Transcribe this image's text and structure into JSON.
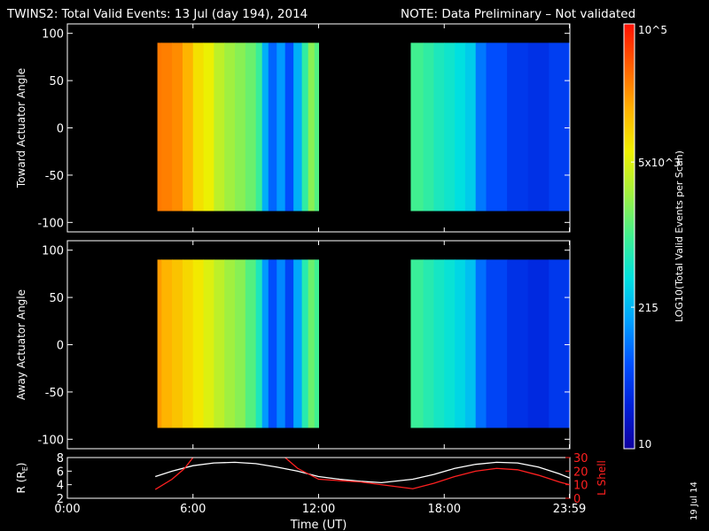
{
  "header": {
    "title": "TWINS2: Total Valid Events: 13 Jul (day 194), 2014",
    "note": "NOTE: Data Preliminary – Not validated",
    "note_color": "#ff2020"
  },
  "side_date": "19 Jul 14",
  "colorbar": {
    "label": "LOG10(Total Valid Events per Scan)",
    "scale": "log",
    "range": [
      10,
      100000
    ],
    "ticks": [
      {
        "value": 100000,
        "label": "10^5"
      },
      {
        "value": 5000,
        "label": "5x10^3"
      },
      {
        "value": 215,
        "label": "215"
      },
      {
        "value": 10,
        "label": "10"
      }
    ],
    "colormap": [
      "#1000a0",
      "#0020d8",
      "#0050ff",
      "#00a0ff",
      "#00e0e0",
      "#40f090",
      "#a0f040",
      "#f0f000",
      "#ffb000",
      "#ff6000",
      "#ff1000"
    ]
  },
  "chart_data": [
    {
      "type": "heatmap",
      "ylabel": "Toward Actuator Angle",
      "ylim": [
        -110,
        110
      ],
      "yticks": [
        100,
        50,
        0,
        -50,
        -100
      ],
      "xlim": [
        0,
        24
      ],
      "angle_range": [
        -88,
        90
      ],
      "data_intervals_hours": [
        [
          4.3,
          12.0
        ],
        [
          16.4,
          24.0
        ]
      ],
      "samples": [
        {
          "t": 4.3,
          "v": 30000
        },
        {
          "t": 4.5,
          "v": 28000
        },
        {
          "t": 5.0,
          "v": 24000
        },
        {
          "t": 5.5,
          "v": 15000
        },
        {
          "t": 6.0,
          "v": 8000
        },
        {
          "t": 6.5,
          "v": 6000
        },
        {
          "t": 7.0,
          "v": 3500
        },
        {
          "t": 7.5,
          "v": 2500
        },
        {
          "t": 8.0,
          "v": 2000
        },
        {
          "t": 8.5,
          "v": 1500
        },
        {
          "t": 9.0,
          "v": 900
        },
        {
          "t": 9.3,
          "v": 200
        },
        {
          "t": 9.6,
          "v": 80
        },
        {
          "t": 10.0,
          "v": 150
        },
        {
          "t": 10.4,
          "v": 60
        },
        {
          "t": 10.8,
          "v": 200
        },
        {
          "t": 11.2,
          "v": 800
        },
        {
          "t": 11.5,
          "v": 2000
        },
        {
          "t": 11.8,
          "v": 1200
        },
        {
          "t": 16.4,
          "v": 1000
        },
        {
          "t": 17.0,
          "v": 800
        },
        {
          "t": 17.5,
          "v": 600
        },
        {
          "t": 18.0,
          "v": 500
        },
        {
          "t": 18.5,
          "v": 400
        },
        {
          "t": 19.0,
          "v": 300
        },
        {
          "t": 19.5,
          "v": 100
        },
        {
          "t": 20.0,
          "v": 60
        },
        {
          "t": 21.0,
          "v": 40
        },
        {
          "t": 22.0,
          "v": 35
        },
        {
          "t": 23.0,
          "v": 45
        },
        {
          "t": 23.9,
          "v": 50
        }
      ]
    },
    {
      "type": "heatmap",
      "ylabel": "Away Actuator Angle",
      "ylim": [
        -110,
        110
      ],
      "yticks": [
        100,
        50,
        0,
        -50,
        -100
      ],
      "xlim": [
        0,
        24
      ],
      "angle_range": [
        -88,
        90
      ],
      "data_intervals_hours": [
        [
          4.3,
          12.0
        ],
        [
          16.4,
          24.0
        ]
      ],
      "samples": [
        {
          "t": 4.3,
          "v": 20000
        },
        {
          "t": 4.5,
          "v": 15000
        },
        {
          "t": 5.0,
          "v": 12000
        },
        {
          "t": 5.5,
          "v": 9000
        },
        {
          "t": 6.0,
          "v": 7000
        },
        {
          "t": 6.5,
          "v": 5000
        },
        {
          "t": 7.0,
          "v": 3500
        },
        {
          "t": 7.5,
          "v": 2500
        },
        {
          "t": 8.0,
          "v": 2000
        },
        {
          "t": 8.5,
          "v": 1200
        },
        {
          "t": 9.0,
          "v": 600
        },
        {
          "t": 9.3,
          "v": 150
        },
        {
          "t": 9.6,
          "v": 60
        },
        {
          "t": 10.0,
          "v": 120
        },
        {
          "t": 10.4,
          "v": 50
        },
        {
          "t": 10.8,
          "v": 180
        },
        {
          "t": 11.2,
          "v": 700
        },
        {
          "t": 11.5,
          "v": 1500
        },
        {
          "t": 11.8,
          "v": 1000
        },
        {
          "t": 16.4,
          "v": 900
        },
        {
          "t": 17.0,
          "v": 700
        },
        {
          "t": 17.5,
          "v": 550
        },
        {
          "t": 18.0,
          "v": 450
        },
        {
          "t": 18.5,
          "v": 350
        },
        {
          "t": 19.0,
          "v": 250
        },
        {
          "t": 19.5,
          "v": 90
        },
        {
          "t": 20.0,
          "v": 50
        },
        {
          "t": 21.0,
          "v": 35
        },
        {
          "t": 22.0,
          "v": 30
        },
        {
          "t": 23.0,
          "v": 40
        },
        {
          "t": 23.9,
          "v": 45
        }
      ]
    },
    {
      "type": "line",
      "xlabel": "Time (UT)",
      "ylabel": "R (RE)",
      "ylabel_parts": {
        "main": "R (R",
        "sub": "E",
        "end": ")"
      },
      "ylim": [
        2,
        8
      ],
      "yticks": [
        2,
        4,
        6,
        8
      ],
      "y2label": "L Shell",
      "y2lim": [
        0,
        30
      ],
      "y2ticks": [
        0,
        10,
        20,
        30
      ],
      "y2color": "#ff2020",
      "xlim": [
        0,
        24
      ],
      "xticks": [
        {
          "value": 0,
          "label": "0:00"
        },
        {
          "value": 6,
          "label": "6:00"
        },
        {
          "value": 12,
          "label": "12:00"
        },
        {
          "value": 18,
          "label": "18:00"
        },
        {
          "value": 23.98,
          "label": "23:59"
        }
      ],
      "series": [
        {
          "axis": "left",
          "color": "#ffffff",
          "points": [
            [
              4.2,
              5.2
            ],
            [
              5.0,
              6.0
            ],
            [
              6.0,
              6.8
            ],
            [
              7.0,
              7.2
            ],
            [
              8.0,
              7.3
            ],
            [
              9.0,
              7.1
            ],
            [
              10.0,
              6.6
            ],
            [
              11.0,
              6.0
            ],
            [
              12.0,
              5.2
            ],
            [
              13.0,
              4.8
            ],
            [
              14.0,
              4.5
            ],
            [
              15.0,
              4.3
            ],
            [
              16.5,
              4.8
            ],
            [
              17.5,
              5.5
            ],
            [
              18.5,
              6.4
            ],
            [
              19.5,
              7.0
            ],
            [
              20.5,
              7.3
            ],
            [
              21.5,
              7.2
            ],
            [
              22.5,
              6.6
            ],
            [
              23.5,
              5.6
            ],
            [
              23.98,
              5.0
            ]
          ]
        },
        {
          "axis": "right",
          "color": "#ff2020",
          "segments": [
            [
              [
                4.2,
                6.5
              ],
              [
                5.0,
                14.0
              ],
              [
                5.6,
                22.0
              ],
              [
                6.0,
                30.0
              ]
            ],
            [
              [
                10.4,
                30.0
              ],
              [
                11.0,
                22.0
              ],
              [
                12.0,
                14.0
              ],
              [
                14.0,
                12.0
              ],
              [
                16.5,
                7.0
              ],
              [
                17.5,
                11.0
              ],
              [
                18.5,
                16.0
              ],
              [
                19.5,
                20.0
              ],
              [
                20.5,
                22.0
              ],
              [
                21.5,
                21.0
              ],
              [
                22.5,
                17.0
              ],
              [
                23.5,
                12.0
              ],
              [
                23.98,
                10.0
              ]
            ]
          ]
        }
      ]
    }
  ]
}
